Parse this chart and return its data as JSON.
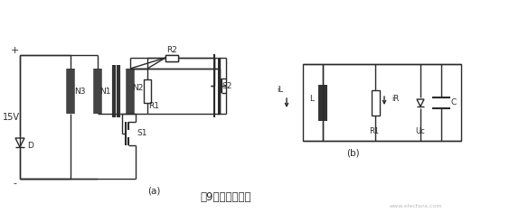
{
  "bg_color": "#ffffff",
  "line_color": "#2a2a2a",
  "label_a": "(a)",
  "label_b": "(b)",
  "caption": "图9正激驱动电路",
  "watermark": "www.elecfans.com",
  "fig_width": 5.74,
  "fig_height": 2.36,
  "dpi": 100
}
